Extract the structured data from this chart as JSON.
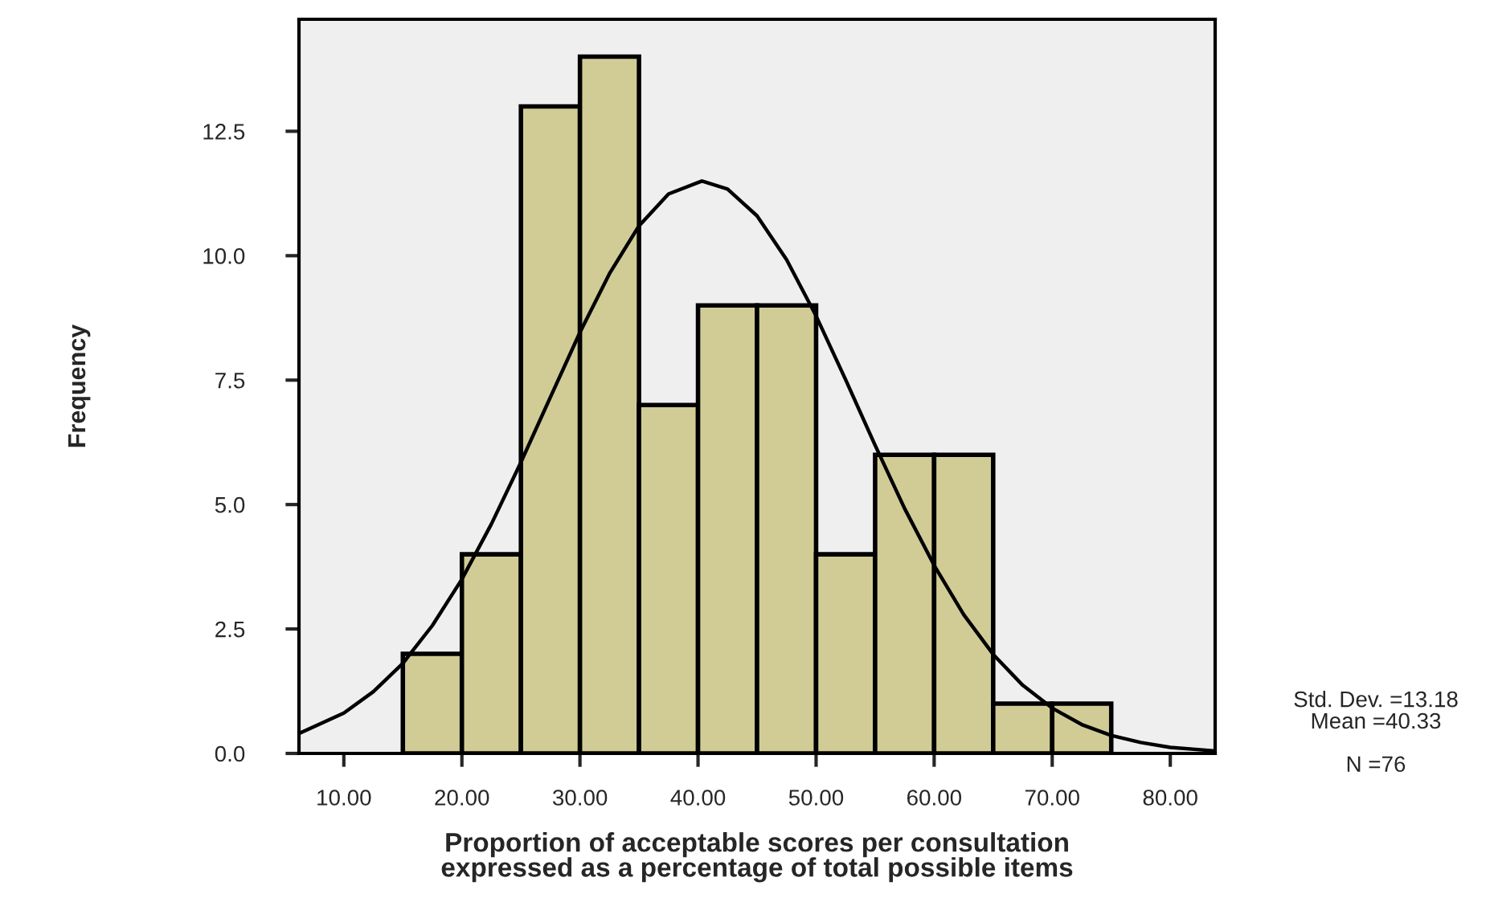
{
  "chart_data": {
    "type": "histogram",
    "xlabel": "Proportion of acceptable scores per consultation\nexpressed as a percentage of total possible items",
    "ylabel": "Frequency",
    "bins": [
      15,
      20,
      25,
      30,
      35,
      40,
      45,
      50,
      55,
      60,
      65,
      70,
      75
    ],
    "values": [
      2,
      4,
      13,
      14,
      7,
      9,
      9,
      4,
      6,
      6,
      1,
      1
    ],
    "color": "#d1cc96",
    "series": [
      {
        "type": "line",
        "color": "#000000",
        "x": [
          6.2,
          10,
          12.5,
          15,
          17.5,
          20,
          22.5,
          25,
          27.5,
          30,
          32.5,
          35,
          37.5,
          40.33,
          42.5,
          45,
          47.5,
          50,
          52.5,
          55,
          57.5,
          60,
          62.5,
          65,
          67.5,
          70,
          72.5,
          75,
          77.5,
          80,
          83.8
        ],
        "values": [
          0.4,
          0.81,
          1.24,
          1.81,
          2.57,
          3.5,
          4.61,
          5.85,
          7.16,
          8.46,
          9.64,
          10.6,
          11.24,
          11.5,
          11.34,
          10.8,
          9.92,
          8.79,
          7.51,
          6.19,
          4.92,
          3.78,
          2.79,
          1.99,
          1.37,
          0.91,
          0.58,
          0.36,
          0.22,
          0.12,
          0.05
        ]
      }
    ],
    "xlim": [
      6.2,
      83.8
    ],
    "ylim": [
      0,
      14.75
    ],
    "xticks": [
      {
        "value": 10,
        "label": "10.00"
      },
      {
        "value": 20,
        "label": "20.00"
      },
      {
        "value": 30,
        "label": "30.00"
      },
      {
        "value": 40,
        "label": "40.00"
      },
      {
        "value": 50,
        "label": "50.00"
      },
      {
        "value": 60,
        "label": "60.00"
      },
      {
        "value": 70,
        "label": "70.00"
      },
      {
        "value": 80,
        "label": "80.00"
      }
    ],
    "yticks": [
      {
        "value": 0,
        "label": "0.0"
      },
      {
        "value": 2.5,
        "label": "2.5"
      },
      {
        "value": 5,
        "label": "5.0"
      },
      {
        "value": 7.5,
        "label": "7.5"
      },
      {
        "value": 10,
        "label": "10.0"
      },
      {
        "value": 12.5,
        "label": "12.5"
      }
    ],
    "grid": false,
    "annotations": [
      "Std. Dev. =13.18\nMean =40.33\n\nN =76"
    ]
  }
}
